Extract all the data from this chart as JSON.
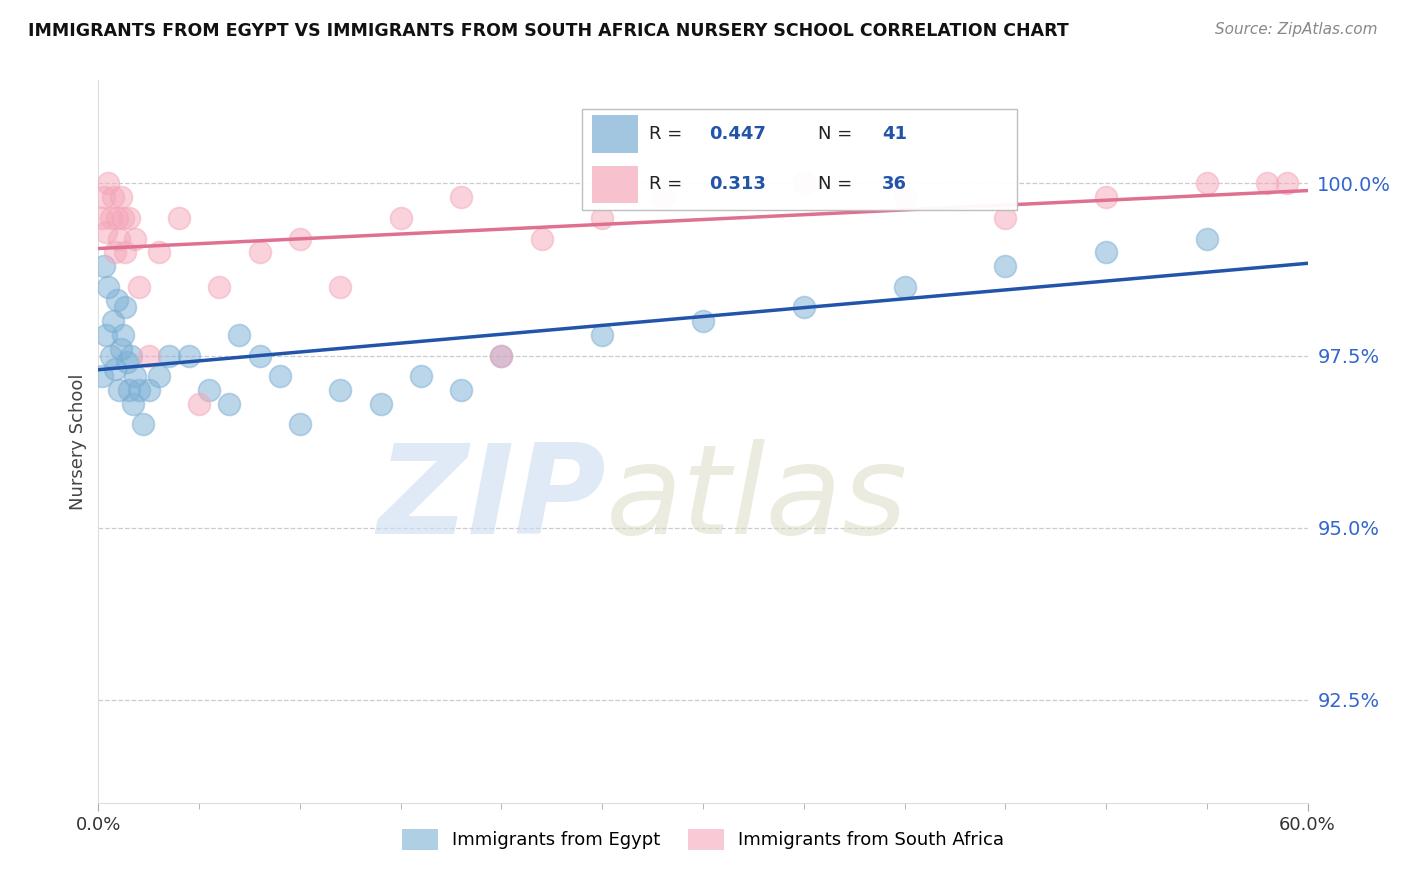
{
  "title": "IMMIGRANTS FROM EGYPT VS IMMIGRANTS FROM SOUTH AFRICA NURSERY SCHOOL CORRELATION CHART",
  "source": "Source: ZipAtlas.com",
  "ylabel": "Nursery School",
  "ytick_values": [
    92.5,
    95.0,
    97.5,
    100.0
  ],
  "xlim": [
    0.0,
    60.0
  ],
  "ylim": [
    91.0,
    101.5
  ],
  "legend_label1": "Immigrants from Egypt",
  "legend_label2": "Immigrants from South Africa",
  "R1": 0.447,
  "N1": 41,
  "R2": 0.313,
  "N2": 36,
  "color1": "#7bafd4",
  "color2": "#f4a7b9",
  "trendline_color1": "#2255aa",
  "trendline_color2": "#e07090",
  "egypt_x": [
    0.2,
    0.3,
    0.4,
    0.5,
    0.6,
    0.7,
    0.8,
    0.9,
    1.0,
    1.1,
    1.2,
    1.3,
    1.4,
    1.5,
    1.6,
    1.7,
    1.8,
    2.0,
    2.2,
    2.5,
    3.0,
    3.5,
    4.5,
    5.5,
    6.5,
    7.0,
    8.0,
    9.0,
    10.0,
    12.0,
    14.0,
    16.0,
    18.0,
    20.0,
    25.0,
    30.0,
    35.0,
    40.0,
    45.0,
    50.0,
    55.0
  ],
  "egypt_y": [
    97.2,
    98.8,
    97.8,
    98.5,
    97.5,
    98.0,
    97.3,
    98.3,
    97.0,
    97.6,
    97.8,
    98.2,
    97.4,
    97.0,
    97.5,
    96.8,
    97.2,
    97.0,
    96.5,
    97.0,
    97.2,
    97.5,
    97.5,
    97.0,
    96.8,
    97.8,
    97.5,
    97.2,
    96.5,
    97.0,
    96.8,
    97.2,
    97.0,
    97.5,
    97.8,
    98.0,
    98.2,
    98.5,
    98.8,
    99.0,
    99.2
  ],
  "sa_x": [
    0.2,
    0.3,
    0.4,
    0.5,
    0.6,
    0.7,
    0.8,
    0.9,
    1.0,
    1.1,
    1.2,
    1.3,
    1.5,
    1.8,
    2.0,
    2.5,
    3.0,
    4.0,
    5.0,
    6.0,
    8.0,
    10.0,
    12.0,
    15.0,
    18.0,
    20.0,
    22.0,
    25.0,
    28.0,
    35.0,
    40.0,
    45.0,
    50.0,
    55.0,
    58.0,
    59.0
  ],
  "sa_y": [
    99.5,
    99.8,
    99.3,
    100.0,
    99.5,
    99.8,
    99.0,
    99.5,
    99.2,
    99.8,
    99.5,
    99.0,
    99.5,
    99.2,
    98.5,
    97.5,
    99.0,
    99.5,
    96.8,
    98.5,
    99.0,
    99.2,
    98.5,
    99.5,
    99.8,
    97.5,
    99.2,
    99.5,
    99.8,
    100.0,
    99.8,
    99.5,
    99.8,
    100.0,
    100.0,
    100.0
  ]
}
